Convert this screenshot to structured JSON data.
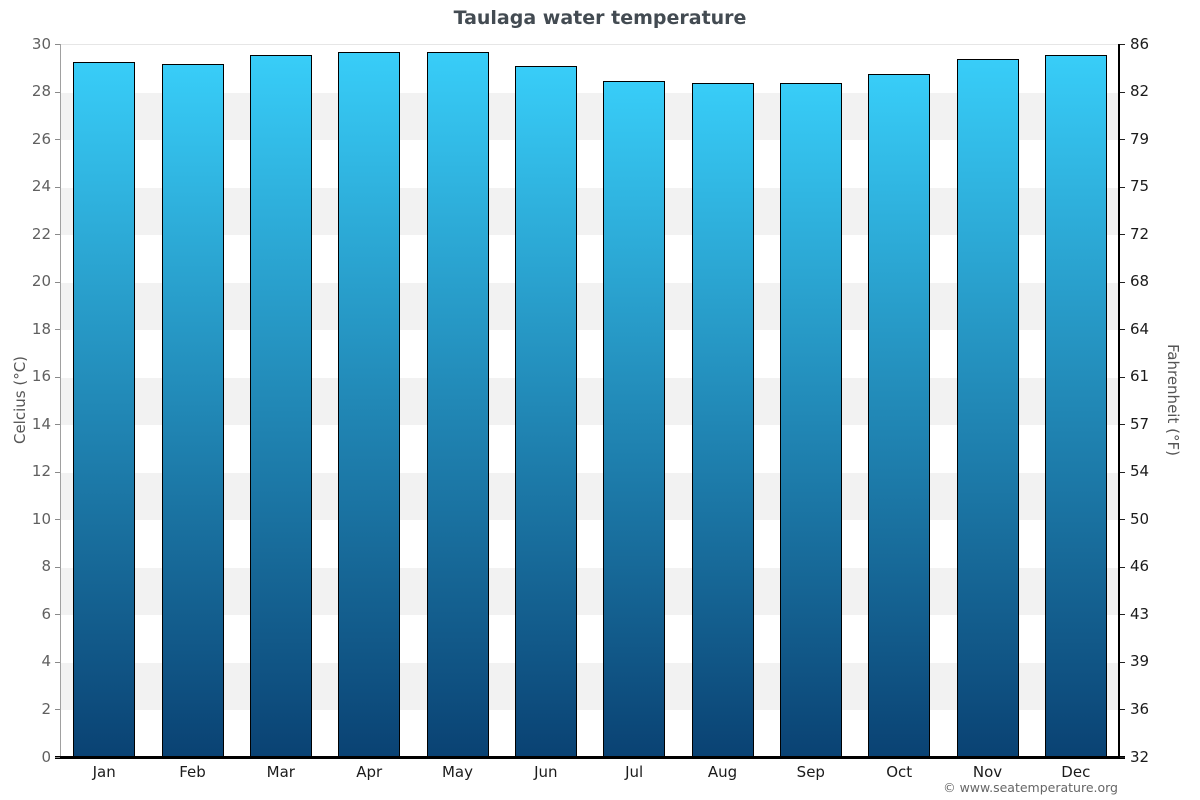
{
  "page": {
    "title": "Taulaga water temperature",
    "footer": "© www.seatemperature.org"
  },
  "chart_data": {
    "type": "bar",
    "title": "Taulaga water temperature",
    "categories": [
      "Jan",
      "Feb",
      "Mar",
      "Apr",
      "May",
      "Jun",
      "Jul",
      "Aug",
      "Sep",
      "Oct",
      "Nov",
      "Dec"
    ],
    "values": [
      29.3,
      29.2,
      29.6,
      29.7,
      29.7,
      29.1,
      28.5,
      28.4,
      28.4,
      28.8,
      29.4,
      29.6
    ],
    "ylabel_left": "Celcius (°C)",
    "ylabel_right": "Fahrenheit (°F)",
    "ylim": [
      0,
      30
    ],
    "ytick_step": 2,
    "yticks_left": [
      "30",
      "28",
      "26",
      "24",
      "22",
      "20",
      "18",
      "16",
      "14",
      "12",
      "10",
      "8",
      "6",
      "4",
      "2",
      "0"
    ],
    "yticks_right": [
      "86",
      "82",
      "79",
      "75",
      "72",
      "68",
      "64",
      "61",
      "57",
      "54",
      "50",
      "46",
      "43",
      "39",
      "36",
      "32"
    ],
    "grid": "alternating-horizontal-bands",
    "legend": "none",
    "colors": {
      "bar_gradient_top": "#38cdf8",
      "bar_gradient_bottom": "#0a4273",
      "bar_border": "#000000",
      "band_fill": "#f2f2f2",
      "title_text": "#434b52",
      "left_tick_text": "#606060",
      "right_tick_text": "#1b1b1b",
      "month_text": "#1b1b1b"
    }
  }
}
